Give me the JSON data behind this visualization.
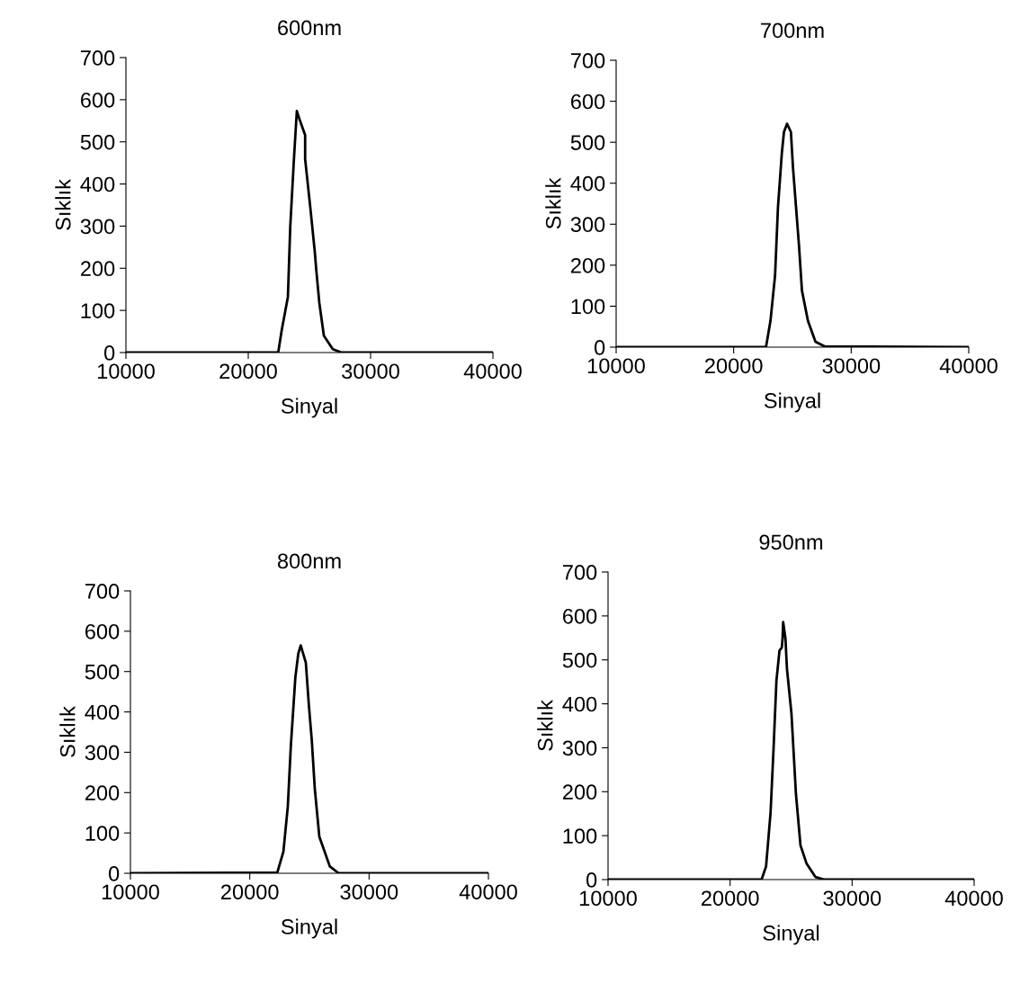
{
  "chart_data": [
    {
      "type": "line",
      "title": "600nm",
      "xlabel": "Sinyal",
      "ylabel": "Sıklık",
      "xlim": [
        10000,
        40000
      ],
      "xticks": [
        10000,
        20000,
        30000,
        40000
      ],
      "ylim": [
        0,
        700
      ],
      "yticks": [
        0,
        100,
        200,
        300,
        400,
        500,
        600,
        700
      ],
      "grid": false,
      "legend": false,
      "series": [
        {
          "color": "#000000",
          "x": [
            10000,
            22000,
            22450,
            22740,
            23240,
            23430,
            23720,
            23970,
            24210,
            24650,
            24650,
            25070,
            25440,
            25560,
            25810,
            26180,
            26910,
            27650,
            40000
          ],
          "values": [
            0,
            0,
            0,
            54,
            132,
            296,
            452,
            573,
            552,
            516,
            459,
            345,
            239,
            196,
            118,
            40,
            8,
            0,
            0
          ]
        }
      ]
    },
    {
      "type": "line",
      "title": "700nm",
      "xlabel": "Sinyal",
      "ylabel": "Sıklık",
      "xlim": [
        10000,
        40000
      ],
      "xticks": [
        10000,
        20000,
        30000,
        40000
      ],
      "ylim": [
        0,
        700
      ],
      "yticks": [
        0,
        100,
        200,
        300,
        400,
        500,
        600,
        700
      ],
      "grid": false,
      "legend": false,
      "series": [
        {
          "color": "#000000",
          "x": [
            10000,
            22750,
            23130,
            23520,
            23770,
            24100,
            24280,
            24540,
            24870,
            25050,
            25560,
            25810,
            26320,
            26960,
            27730,
            40000
          ],
          "values": [
            0,
            0,
            64,
            174,
            342,
            474,
            525,
            545,
            525,
            437,
            247,
            138,
            64,
            13,
            2,
            0
          ]
        }
      ]
    },
    {
      "type": "line",
      "title": "800nm",
      "xlabel": "Sinyal",
      "ylabel": "Sıklık",
      "xlim": [
        10000,
        40000
      ],
      "xticks": [
        10000,
        20000,
        30000,
        40000
      ],
      "ylim": [
        0,
        700
      ],
      "yticks": [
        0,
        100,
        200,
        300,
        400,
        500,
        600,
        700
      ],
      "grid": false,
      "legend": false,
      "series": [
        {
          "color": "#000000",
          "x": [
            10000,
            22310,
            22820,
            23190,
            23440,
            23820,
            24070,
            24270,
            24700,
            24950,
            25200,
            25450,
            25830,
            26710,
            27460,
            40000
          ],
          "values": [
            0,
            2,
            54,
            166,
            314,
            485,
            545,
            565,
            522,
            418,
            329,
            210,
            91,
            17,
            0,
            0
          ]
        }
      ]
    },
    {
      "type": "line",
      "title": "950nm",
      "xlabel": "Sinyal",
      "ylabel": "Sıklık",
      "xlim": [
        10000,
        40000
      ],
      "xticks": [
        10000,
        20000,
        30000,
        40000
      ],
      "ylim": [
        0,
        700
      ],
      "yticks": [
        0,
        100,
        200,
        300,
        400,
        500,
        600,
        700
      ],
      "grid": false,
      "legend": false,
      "series": [
        {
          "color": "#000000",
          "x": [
            10000,
            22580,
            22950,
            23320,
            23560,
            23800,
            24050,
            24240,
            24300,
            24350,
            24540,
            24660,
            25030,
            25400,
            25770,
            26260,
            26990,
            27730,
            40000
          ],
          "values": [
            0,
            0,
            30,
            153,
            296,
            453,
            521,
            528,
            548,
            586,
            548,
            480,
            378,
            194,
            78,
            37,
            6,
            0,
            0
          ]
        }
      ]
    }
  ]
}
